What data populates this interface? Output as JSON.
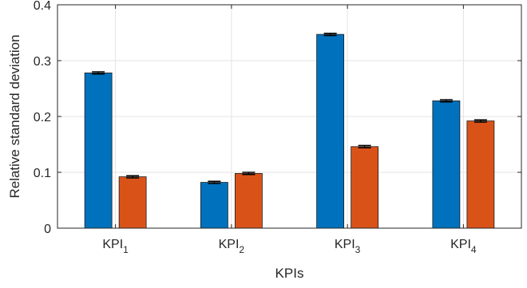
{
  "chart_data": {
    "type": "bar",
    "categories": [
      {
        "base": "KPI",
        "sub": "1"
      },
      {
        "base": "KPI",
        "sub": "2"
      },
      {
        "base": "KPI",
        "sub": "3"
      },
      {
        "base": "KPI",
        "sub": "4"
      }
    ],
    "series": [
      {
        "values": [
          0.278,
          0.082,
          0.347,
          0.228
        ],
        "errors": [
          0.002,
          0.002,
          0.002,
          0.002
        ],
        "color": "#0072BD"
      },
      {
        "values": [
          0.092,
          0.098,
          0.146,
          0.192
        ],
        "errors": [
          0.002,
          0.002,
          0.002,
          0.002
        ],
        "color": "#D95319"
      }
    ],
    "title": "",
    "xlabel": "KPIs",
    "ylabel": "Relative standard deviation",
    "ylim": [
      0,
      0.4
    ],
    "yticks": [
      0,
      0.1,
      0.2,
      0.3,
      0.4
    ],
    "ytick_labels": [
      "0",
      "0.1",
      "0.2",
      "0.3",
      "0.4"
    ],
    "grid": true,
    "error_bars": true
  }
}
